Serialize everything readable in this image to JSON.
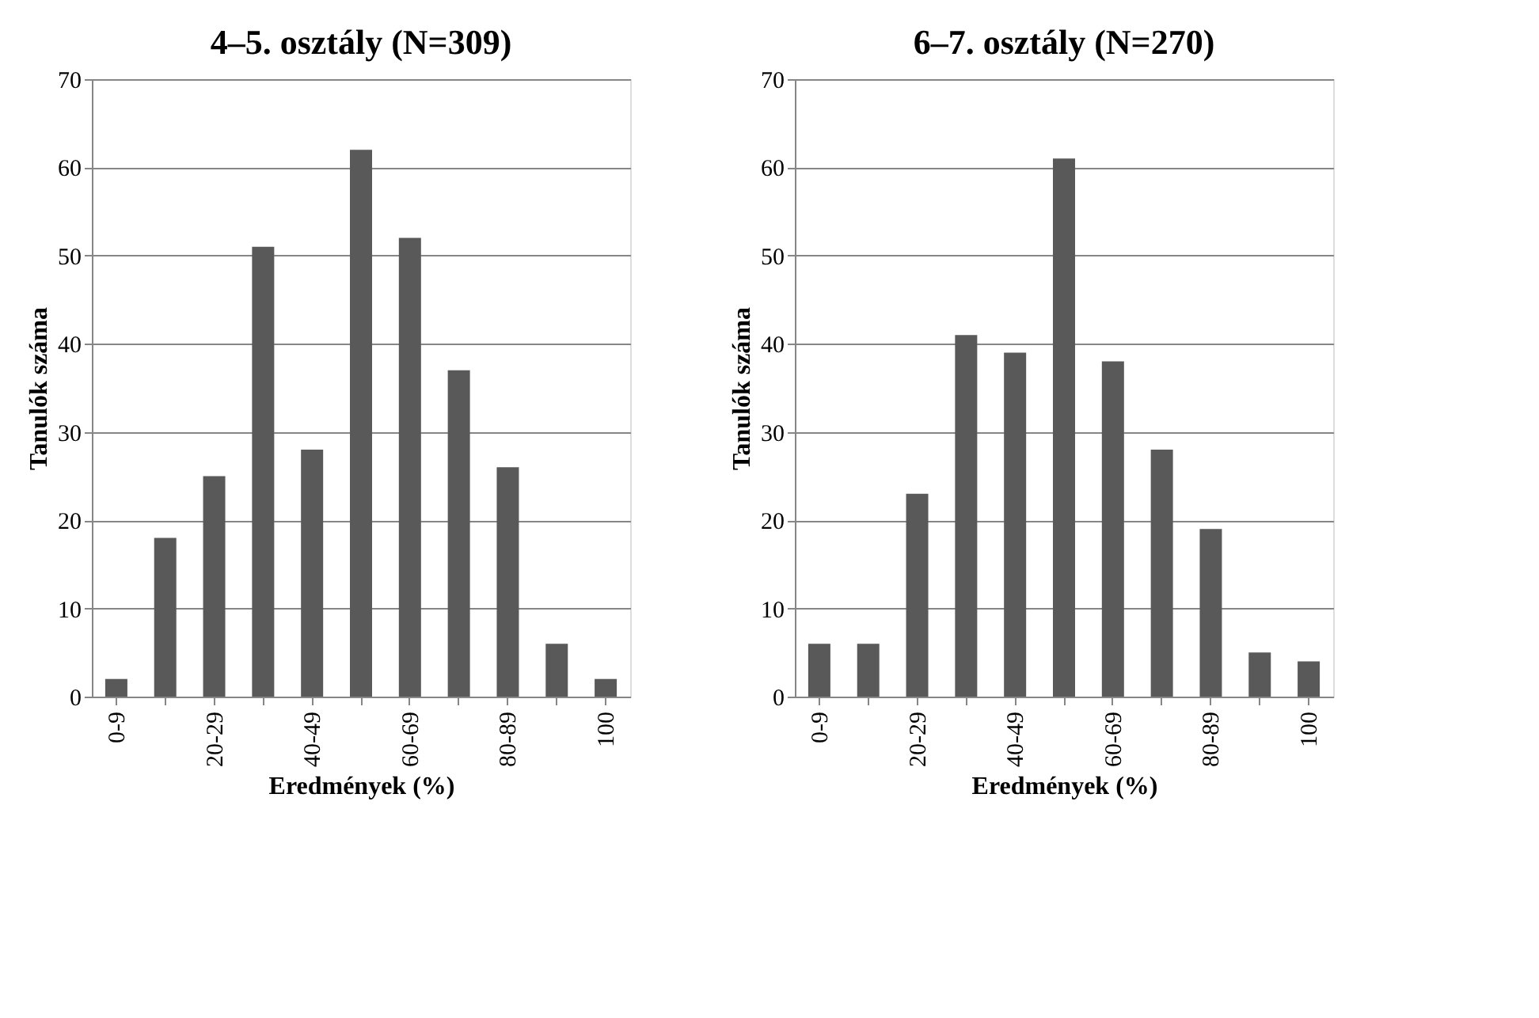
{
  "chart_data": [
    {
      "type": "bar",
      "title": "4–5. osztály (N=309)",
      "xlabel": "Eredmények (%)",
      "ylabel": "Tanulók száma",
      "categories": [
        "0-9",
        null,
        "20-29",
        null,
        "40-49",
        null,
        "60-69",
        null,
        "80-89",
        null,
        "100"
      ],
      "series": [
        {
          "color": "#595959",
          "values": [
            2,
            18,
            25,
            51,
            28,
            62,
            52,
            37,
            26,
            6,
            2
          ]
        }
      ],
      "ylim": [
        0,
        70
      ],
      "yticks": [
        0,
        10,
        20,
        30,
        40,
        50,
        60,
        70
      ],
      "grid": "y"
    },
    {
      "type": "bar",
      "title": "6–7. osztály (N=270)",
      "xlabel": "Eredmények (%)",
      "ylabel": "Tanulók száma",
      "categories": [
        "0-9",
        null,
        "20-29",
        null,
        "40-49",
        null,
        "60-69",
        null,
        "80-89",
        null,
        "100"
      ],
      "series": [
        {
          "color": "#595959",
          "values": [
            6,
            6,
            23,
            41,
            39,
            61,
            38,
            28,
            19,
            5,
            4
          ]
        }
      ],
      "ylim": [
        0,
        70
      ],
      "yticks": [
        0,
        10,
        20,
        30,
        40,
        50,
        60,
        70
      ],
      "grid": "y"
    }
  ]
}
